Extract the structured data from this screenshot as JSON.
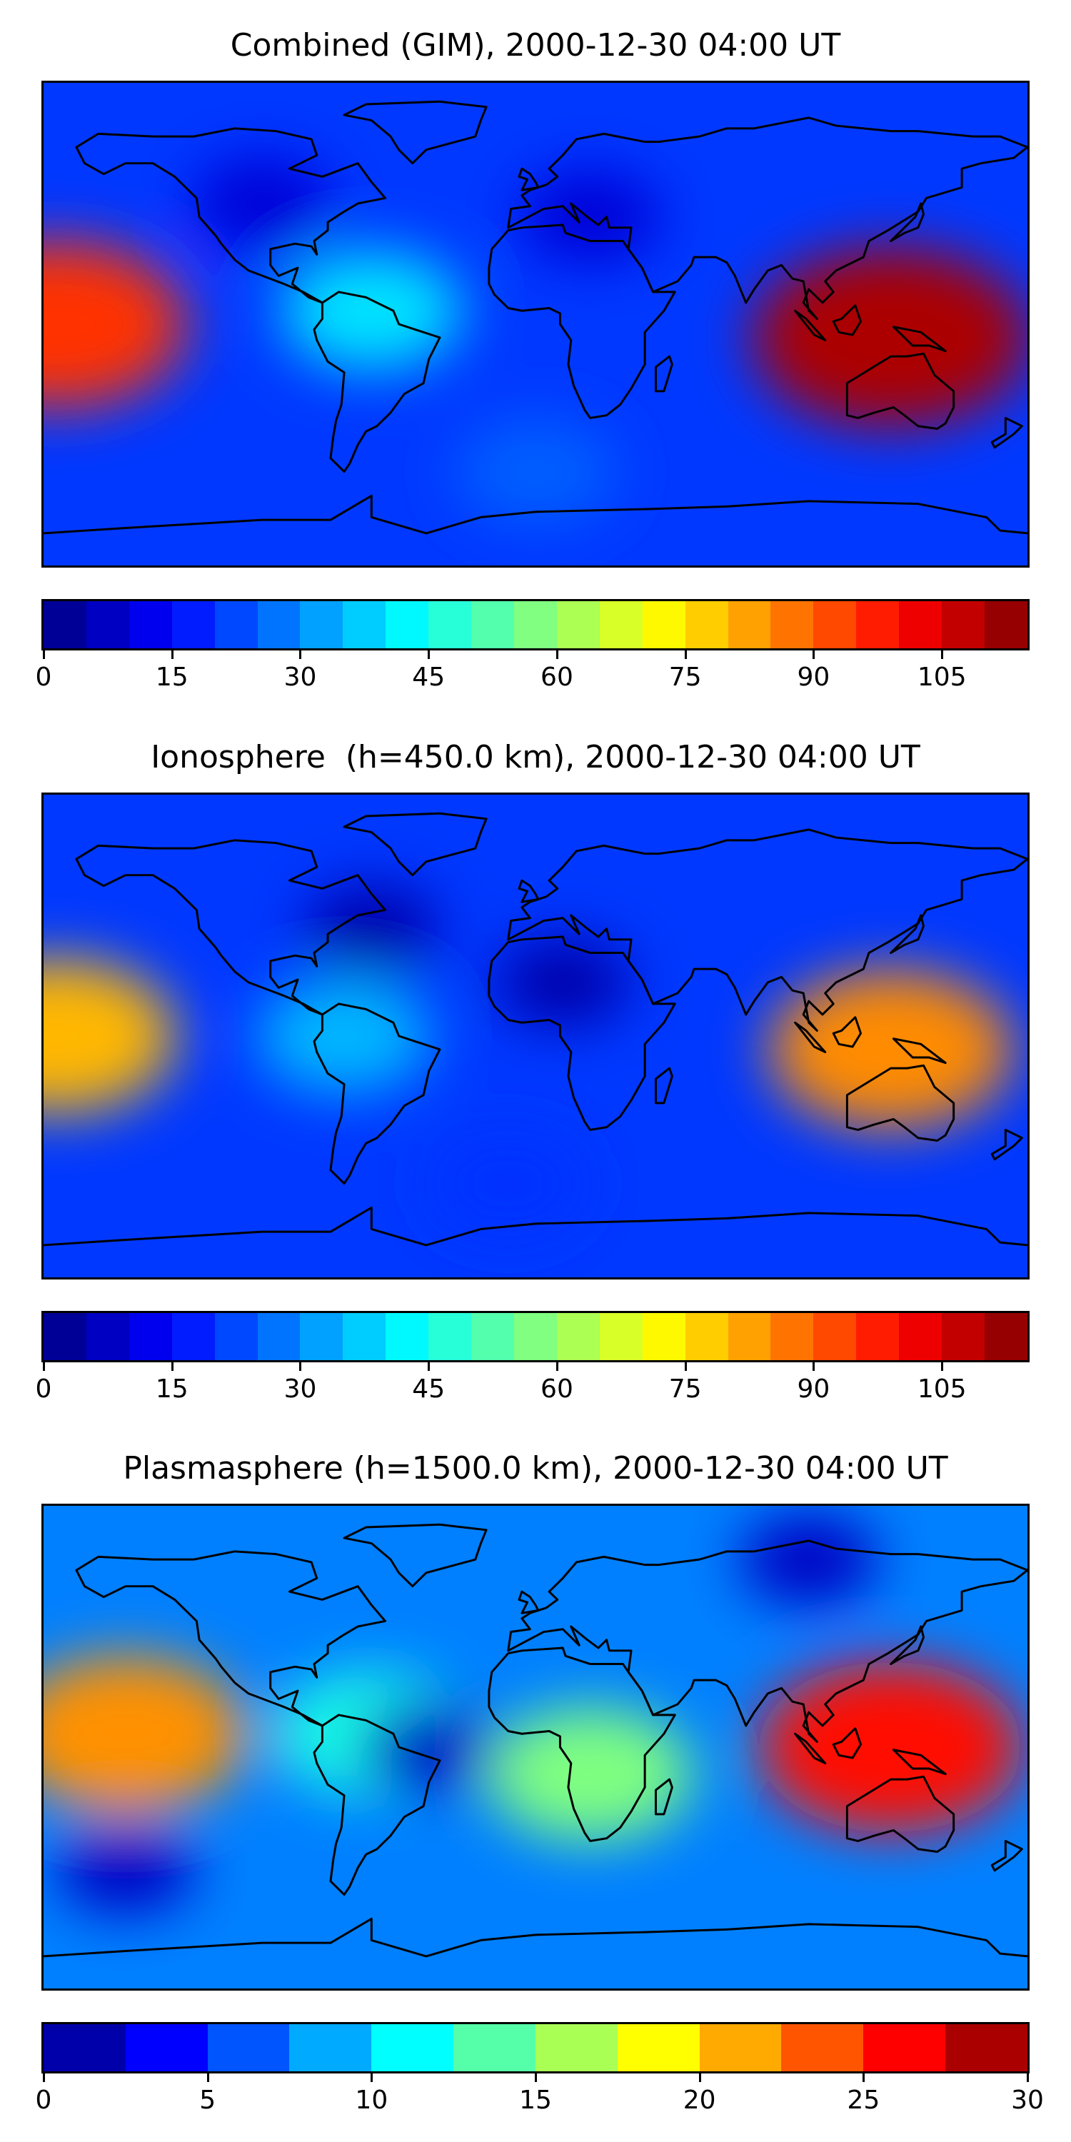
{
  "colormap": "jet",
  "chart_data": [
    {
      "type": "heatmap",
      "title": "Combined (GIM), 2000-12-30 04:00 UT",
      "basemap": "world coastlines",
      "colorbar": {
        "levels": [
          0,
          5,
          10,
          15,
          20,
          25,
          30,
          35,
          40,
          45,
          50,
          55,
          60,
          65,
          70,
          75,
          80,
          85,
          90,
          95,
          100,
          105,
          110,
          115
        ],
        "ticks": [
          0,
          15,
          30,
          45,
          60,
          75,
          90,
          105
        ],
        "tick_labels": [
          "0",
          "15",
          "30",
          "45",
          "60",
          "75",
          "90",
          "105"
        ],
        "range": [
          0,
          115
        ]
      },
      "features": [
        {
          "lon": 130,
          "lat": -5,
          "value": 110
        },
        {
          "lon": -175,
          "lat": 0,
          "value": 95
        },
        {
          "lon": -60,
          "lat": 5,
          "value": 40
        },
        {
          "lon": 20,
          "lat": 40,
          "value": 10
        },
        {
          "lon": -100,
          "lat": 45,
          "value": 10
        },
        {
          "lon": 0,
          "lat": -55,
          "value": 25
        }
      ]
    },
    {
      "type": "heatmap",
      "title": "Ionosphere  (h=450.0 km), 2000-12-30 04:00 UT",
      "basemap": "world coastlines",
      "colorbar": {
        "levels": [
          0,
          5,
          10,
          15,
          20,
          25,
          30,
          35,
          40,
          45,
          50,
          55,
          60,
          65,
          70,
          75,
          80,
          85,
          90,
          95,
          100,
          105,
          110,
          115
        ],
        "ticks": [
          0,
          15,
          30,
          45,
          60,
          75,
          90,
          105
        ],
        "tick_labels": [
          "0",
          "15",
          "30",
          "45",
          "60",
          "75",
          "90",
          "105"
        ],
        "range": [
          0,
          115
        ]
      },
      "features": [
        {
          "lon": 130,
          "lat": -5,
          "value": 85
        },
        {
          "lon": -175,
          "lat": 0,
          "value": 80
        },
        {
          "lon": -70,
          "lat": 0,
          "value": 35
        },
        {
          "lon": -60,
          "lat": 40,
          "value": 5
        },
        {
          "lon": 10,
          "lat": 20,
          "value": 5
        },
        {
          "lon": -10,
          "lat": -55,
          "value": 20
        }
      ]
    },
    {
      "type": "heatmap",
      "title": "Plasmasphere (h=1500.0 km), 2000-12-30 04:00 UT",
      "basemap": "world coastlines",
      "colorbar": {
        "levels": [
          0,
          2.5,
          5,
          7.5,
          10,
          12.5,
          15,
          17.5,
          20,
          22.5,
          25,
          27.5,
          30
        ],
        "ticks": [
          0,
          5,
          10,
          15,
          20,
          25,
          30
        ],
        "tick_labels": [
          "0",
          "5",
          "10",
          "15",
          "20",
          "25",
          "30"
        ],
        "range": [
          0,
          30
        ]
      },
      "features": [
        {
          "lon": 130,
          "lat": 0,
          "value": 26
        },
        {
          "lon": -150,
          "lat": 5,
          "value": 22
        },
        {
          "lon": 20,
          "lat": -10,
          "value": 15
        },
        {
          "lon": -60,
          "lat": 5,
          "value": 12
        },
        {
          "lon": -40,
          "lat": 0,
          "value": 2
        },
        {
          "lon": 100,
          "lat": 70,
          "value": 2
        },
        {
          "lon": -150,
          "lat": -45,
          "value": 2
        }
      ]
    }
  ]
}
